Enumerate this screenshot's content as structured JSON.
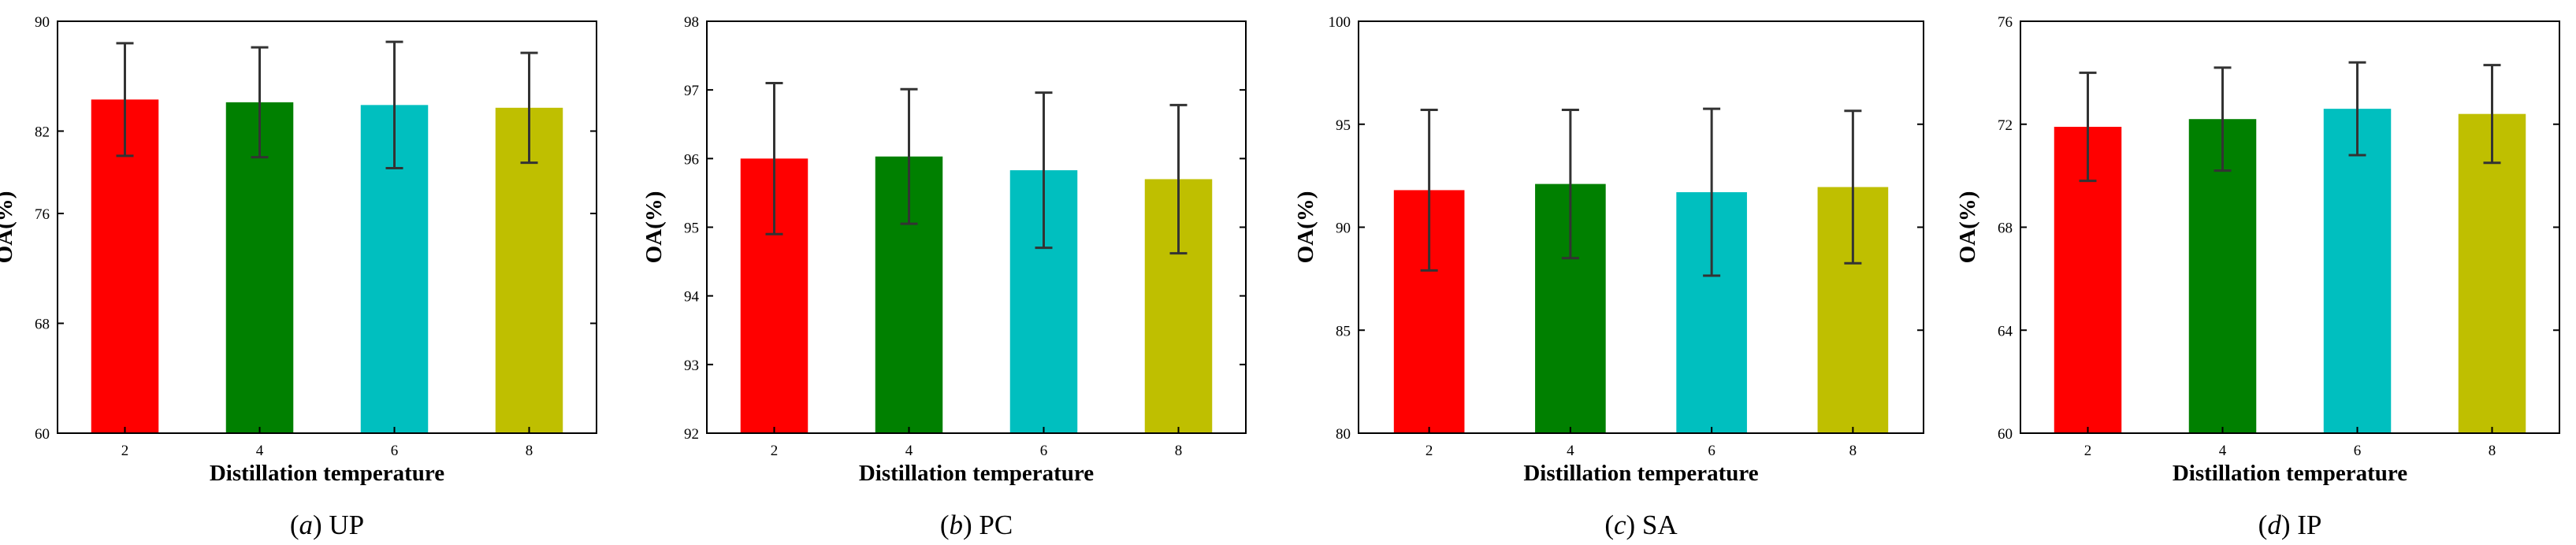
{
  "chart_data": [
    {
      "type": "bar",
      "caption_prefix": "(",
      "caption_letter": "a",
      "caption_suffix": ") ",
      "caption_name": "UP",
      "xlabel": "Distillation temperature",
      "ylabel": "OA(%)",
      "ylim": [
        60,
        90
      ],
      "yticks": [
        60,
        68,
        76,
        82,
        90
      ],
      "categories": [
        "2",
        "4",
        "6",
        "8"
      ],
      "values": [
        84.3,
        84.1,
        83.9,
        83.7
      ],
      "errors": [
        4.1,
        4.0,
        4.6,
        4.0
      ],
      "colors": [
        "#ff0000",
        "#008000",
        "#00bfbf",
        "#bfbf00"
      ]
    },
    {
      "type": "bar",
      "caption_prefix": "(",
      "caption_letter": "b",
      "caption_suffix": ") ",
      "caption_name": "PC",
      "xlabel": "Distillation temperature",
      "ylabel": "OA(%)",
      "ylim": [
        92,
        98
      ],
      "yticks": [
        92,
        93,
        94,
        95,
        96,
        97,
        98
      ],
      "categories": [
        "2",
        "4",
        "6",
        "8"
      ],
      "values": [
        96.0,
        96.03,
        95.83,
        95.7
      ],
      "errors": [
        1.1,
        0.98,
        1.13,
        1.08
      ],
      "colors": [
        "#ff0000",
        "#008000",
        "#00bfbf",
        "#bfbf00"
      ]
    },
    {
      "type": "bar",
      "caption_prefix": "(",
      "caption_letter": "c",
      "caption_suffix": ") ",
      "caption_name": "SA",
      "xlabel": "Distillation temperature",
      "ylabel": "OA(%)",
      "ylim": [
        80,
        100
      ],
      "yticks": [
        80,
        85,
        90,
        95,
        100
      ],
      "categories": [
        "2",
        "4",
        "6",
        "8"
      ],
      "values": [
        91.8,
        92.1,
        91.7,
        91.95
      ],
      "errors": [
        3.9,
        3.6,
        4.05,
        3.7
      ],
      "colors": [
        "#ff0000",
        "#008000",
        "#00bfbf",
        "#bfbf00"
      ]
    },
    {
      "type": "bar",
      "caption_prefix": "(",
      "caption_letter": "d",
      "caption_suffix": ") ",
      "caption_name": "IP",
      "xlabel": "Distillation temperature",
      "ylabel": "OA(%)",
      "ylim": [
        60,
        76
      ],
      "yticks": [
        60,
        64,
        68,
        72,
        76
      ],
      "categories": [
        "2",
        "4",
        "6",
        "8"
      ],
      "values": [
        71.9,
        72.2,
        72.6,
        72.4
      ],
      "errors": [
        2.1,
        2.0,
        1.8,
        1.9
      ],
      "colors": [
        "#ff0000",
        "#008000",
        "#00bfbf",
        "#bfbf00"
      ]
    }
  ]
}
